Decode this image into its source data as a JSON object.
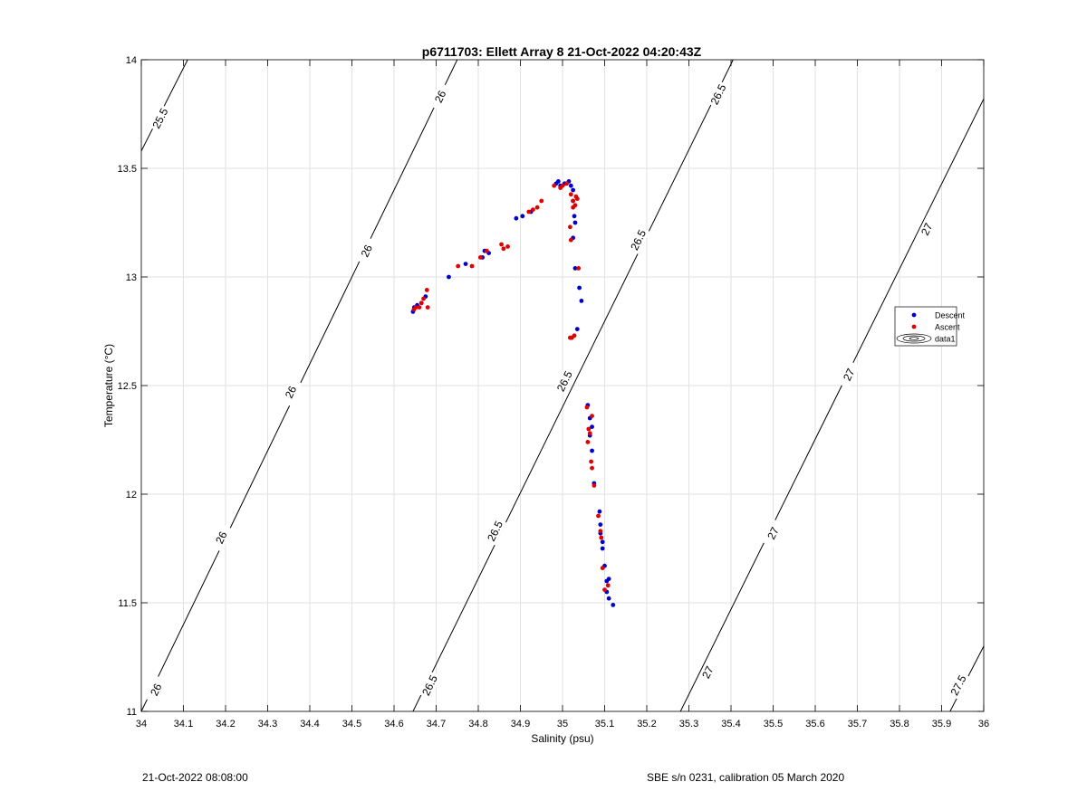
{
  "chart_data": {
    "type": "scatter",
    "title": "p6711703: Ellett Array 8 21-Oct-2022 04:20:43Z",
    "xlabel": "Salinity (psu)",
    "ylabel": "Temperature (°C)",
    "xlim": [
      34,
      36
    ],
    "ylim": [
      11,
      14
    ],
    "xticks": [
      "34",
      "34.1",
      "34.2",
      "34.3",
      "34.4",
      "34.5",
      "34.6",
      "34.7",
      "34.8",
      "34.9",
      "35",
      "35.1",
      "35.2",
      "35.3",
      "35.4",
      "35.5",
      "35.6",
      "35.7",
      "35.8",
      "35.9",
      "36"
    ],
    "yticks": [
      "11",
      "11.5",
      "12",
      "12.5",
      "13",
      "13.5",
      "14"
    ],
    "grid": true,
    "legend_position": "east",
    "legend": [
      {
        "label": "Descent",
        "color": "#0000cc",
        "marker": "dot"
      },
      {
        "label": "Ascent",
        "color": "#e00000",
        "marker": "dot"
      },
      {
        "label": "data1",
        "color": "#000000",
        "marker": "contour"
      }
    ],
    "contours": [
      {
        "label": "25.5",
        "x": [
          34.0,
          34.11
        ],
        "y": [
          13.58,
          14.0
        ]
      },
      {
        "label": "26",
        "x": [
          34.0,
          34.75
        ],
        "y": [
          11.0,
          14.0
        ]
      },
      {
        "label": "26.5",
        "x": [
          34.645,
          35.405
        ],
        "y": [
          11.0,
          14.0
        ]
      },
      {
        "label": "27",
        "x": [
          35.28,
          36.0
        ],
        "y": [
          11.0,
          13.82
        ]
      },
      {
        "label": "27.5",
        "x": [
          35.92,
          36.0
        ],
        "y": [
          11.0,
          11.3
        ]
      }
    ],
    "contour_labels": [
      {
        "text": "25.5",
        "x": 34.045,
        "y": 13.73
      },
      {
        "text": "26",
        "x": 34.71,
        "y": 13.83
      },
      {
        "text": "26",
        "x": 34.535,
        "y": 13.12
      },
      {
        "text": "26",
        "x": 34.355,
        "y": 12.47
      },
      {
        "text": "26",
        "x": 34.19,
        "y": 11.8
      },
      {
        "text": "26",
        "x": 34.035,
        "y": 11.1
      },
      {
        "text": "26.5",
        "x": 35.37,
        "y": 13.84
      },
      {
        "text": "26.5",
        "x": 35.18,
        "y": 13.17
      },
      {
        "text": "26.5",
        "x": 35.005,
        "y": 12.52
      },
      {
        "text": "26.5",
        "x": 34.84,
        "y": 11.83
      },
      {
        "text": "26.5",
        "x": 34.685,
        "y": 11.12
      },
      {
        "text": "27",
        "x": 35.865,
        "y": 13.22
      },
      {
        "text": "27",
        "x": 35.68,
        "y": 12.55
      },
      {
        "text": "27",
        "x": 35.5,
        "y": 11.82
      },
      {
        "text": "27",
        "x": 35.345,
        "y": 11.18
      },
      {
        "text": "27.5",
        "x": 35.94,
        "y": 11.12
      }
    ],
    "series": [
      {
        "name": "Descent",
        "color": "#0000cc",
        "x": [
          34.645,
          34.648,
          34.655,
          34.665,
          34.675,
          34.73,
          34.77,
          34.81,
          34.815,
          34.825,
          34.89,
          34.905,
          34.925,
          34.985,
          34.99,
          34.995,
          35.005,
          35.015,
          35.02,
          35.025,
          35.025,
          35.028,
          35.03,
          35.025,
          35.03,
          35.04,
          35.045,
          35.035,
          35.06,
          35.065,
          35.07,
          35.065,
          35.07,
          35.075,
          35.088,
          35.09,
          35.09,
          35.095,
          35.095,
          35.1,
          35.105,
          35.105,
          35.11,
          35.11,
          35.12
        ],
        "y": [
          12.84,
          12.86,
          12.87,
          12.88,
          12.91,
          13.0,
          13.06,
          13.09,
          13.12,
          13.11,
          13.27,
          13.28,
          13.3,
          13.43,
          13.44,
          13.42,
          13.43,
          13.44,
          13.42,
          13.4,
          13.35,
          13.28,
          13.25,
          13.18,
          13.04,
          12.95,
          12.89,
          12.76,
          12.41,
          12.35,
          12.31,
          12.27,
          12.2,
          12.05,
          11.92,
          11.86,
          11.82,
          11.78,
          11.75,
          11.67,
          11.6,
          11.55,
          11.52,
          11.61,
          11.49
        ]
      },
      {
        "name": "Ascent",
        "color": "#e00000",
        "x": [
          34.647,
          34.652,
          34.66,
          34.665,
          34.67,
          34.678,
          34.68,
          34.752,
          34.785,
          34.805,
          34.82,
          34.855,
          34.86,
          34.87,
          34.92,
          34.93,
          34.94,
          34.95,
          34.98,
          34.995,
          35.0,
          35.01,
          35.02,
          35.025,
          35.03,
          35.032,
          35.035,
          35.025,
          35.018,
          35.02,
          35.038,
          35.028,
          35.022,
          35.018,
          35.058,
          35.062,
          35.07,
          35.065,
          35.06,
          35.068,
          35.07,
          35.075,
          35.085,
          35.09,
          35.092,
          35.095,
          35.1,
          35.108
        ],
        "y": [
          12.85,
          12.86,
          12.86,
          12.88,
          12.9,
          12.94,
          12.86,
          13.05,
          13.05,
          13.09,
          13.12,
          13.15,
          13.13,
          13.14,
          13.3,
          13.31,
          13.32,
          13.35,
          13.42,
          13.41,
          13.42,
          13.43,
          13.38,
          13.35,
          13.33,
          13.37,
          13.36,
          13.32,
          13.23,
          13.17,
          13.04,
          12.73,
          12.72,
          12.72,
          12.4,
          12.3,
          12.36,
          12.28,
          12.24,
          12.15,
          12.12,
          12.04,
          11.9,
          11.83,
          11.8,
          11.66,
          11.56,
          11.58
        ]
      }
    ]
  },
  "footer": {
    "timestamp": "21-Oct-2022 08:08:00",
    "instrument": "SBE s/n 0231, calibration 05 March 2020"
  }
}
